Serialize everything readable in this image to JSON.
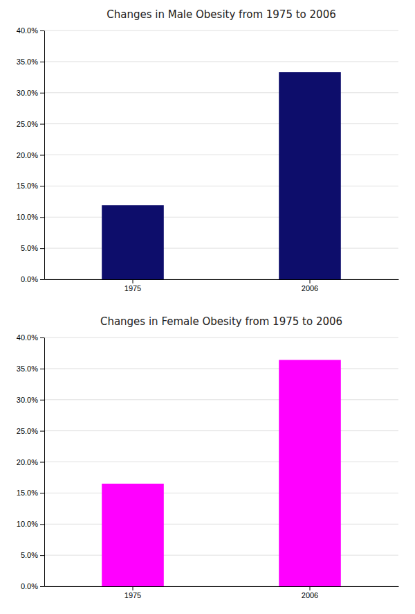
{
  "chart_data": [
    {
      "type": "bar",
      "title": "Changes in Male Obesity from 1975 to 2006",
      "categories": [
        "1975",
        "2006"
      ],
      "values": [
        0.119,
        0.333
      ],
      "color": "#0d0d6b",
      "ylim": [
        0,
        0.4
      ],
      "yticks": [
        {
          "value": 0.0,
          "label": "0.0%"
        },
        {
          "value": 0.05,
          "label": "5.0%"
        },
        {
          "value": 0.1,
          "label": "10.0%"
        },
        {
          "value": 0.15,
          "label": "15.0%"
        },
        {
          "value": 0.2,
          "label": "20.0%"
        },
        {
          "value": 0.25,
          "label": "25.0%"
        },
        {
          "value": 0.3,
          "label": "30.0%"
        },
        {
          "value": 0.35,
          "label": "35.0%"
        },
        {
          "value": 0.4,
          "label": "40.0%"
        }
      ],
      "grid": true
    },
    {
      "type": "bar",
      "title": "Changes in Female Obesity from 1975 to 2006",
      "categories": [
        "1975",
        "2006"
      ],
      "values": [
        0.165,
        0.364
      ],
      "color": "#ff00ff",
      "ylim": [
        0,
        0.4
      ],
      "yticks": [
        {
          "value": 0.0,
          "label": "0.0%"
        },
        {
          "value": 0.05,
          "label": "5.0%"
        },
        {
          "value": 0.1,
          "label": "10.0%"
        },
        {
          "value": 0.15,
          "label": "15.0%"
        },
        {
          "value": 0.2,
          "label": "20.0%"
        },
        {
          "value": 0.25,
          "label": "25.0%"
        },
        {
          "value": 0.3,
          "label": "30.0%"
        },
        {
          "value": 0.35,
          "label": "35.0%"
        },
        {
          "value": 0.4,
          "label": "40.0%"
        }
      ],
      "grid": true
    }
  ]
}
